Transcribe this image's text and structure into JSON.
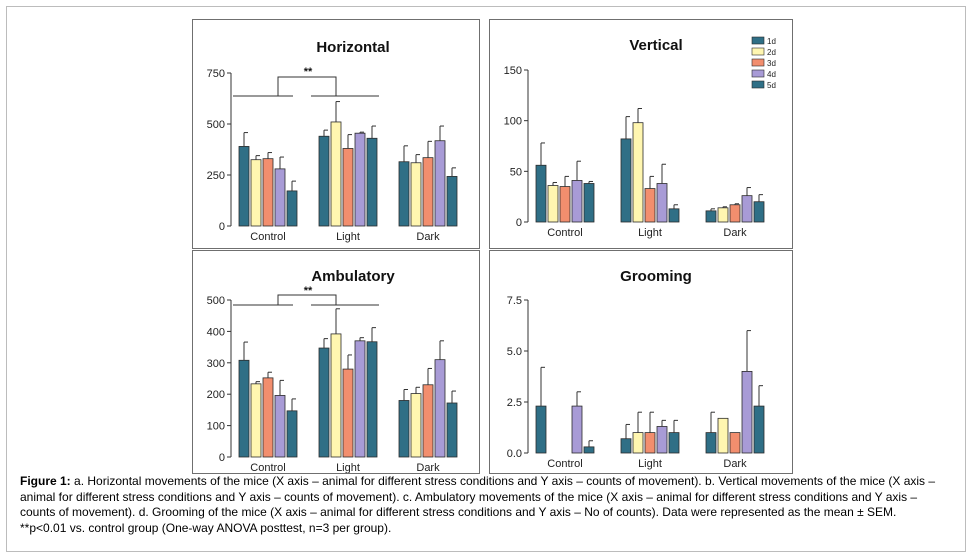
{
  "chart_data": [
    {
      "type": "bar",
      "panel_id": "a",
      "title": "Horizontal",
      "categories": [
        "Control",
        "Light",
        "Dark"
      ],
      "ylim": [
        0,
        750
      ],
      "yticks": [
        "0",
        "250",
        "500",
        "750"
      ],
      "ytick_values": [
        0,
        250,
        500,
        750
      ],
      "legend": false,
      "significance": "**",
      "series": [
        {
          "values": [
            390,
            440,
            315
          ],
          "errors": [
            68,
            30,
            78
          ]
        },
        {
          "values": [
            325,
            510,
            310
          ],
          "errors": [
            20,
            100,
            40
          ]
        },
        {
          "values": [
            330,
            380,
            335
          ],
          "errors": [
            30,
            68,
            80
          ]
        },
        {
          "values": [
            280,
            455,
            418
          ],
          "errors": [
            58,
            5,
            72
          ]
        },
        {
          "values": [
            172,
            430,
            243
          ],
          "errors": [
            48,
            60,
            42
          ]
        }
      ]
    },
    {
      "type": "bar",
      "panel_id": "b",
      "title": "Vertical",
      "categories": [
        "Control",
        "Light",
        "Dark"
      ],
      "ylim": [
        0,
        150
      ],
      "yticks": [
        "0",
        "50",
        "100",
        "150"
      ],
      "ytick_values": [
        0,
        50,
        100,
        150
      ],
      "legend": true,
      "legend_position": "top-right",
      "series": [
        {
          "name": "1d",
          "values": [
            56,
            82,
            11
          ],
          "errors": [
            22,
            22,
            2
          ]
        },
        {
          "name": "2d",
          "values": [
            36,
            98,
            14
          ],
          "errors": [
            3,
            14,
            1
          ]
        },
        {
          "name": "3d",
          "values": [
            35,
            33,
            17
          ],
          "errors": [
            10,
            12,
            1
          ]
        },
        {
          "name": "4d",
          "values": [
            41,
            38,
            26
          ],
          "errors": [
            19,
            19,
            8
          ]
        },
        {
          "name": "5d",
          "values": [
            38,
            13,
            20
          ],
          "errors": [
            2,
            4,
            7
          ]
        }
      ]
    },
    {
      "type": "bar",
      "panel_id": "c",
      "title": "Ambulatory",
      "categories": [
        "Control",
        "Light",
        "Dark"
      ],
      "ylim": [
        0,
        500
      ],
      "yticks": [
        "0",
        "100",
        "200",
        "300",
        "400",
        "500"
      ],
      "ytick_values": [
        0,
        100,
        200,
        300,
        400,
        500
      ],
      "legend": false,
      "significance": "**",
      "series": [
        {
          "values": [
            308,
            347,
            180
          ],
          "errors": [
            58,
            30,
            35
          ]
        },
        {
          "values": [
            233,
            392,
            202
          ],
          "errors": [
            7,
            80,
            20
          ]
        },
        {
          "values": [
            252,
            280,
            230
          ],
          "errors": [
            18,
            45,
            52
          ]
        },
        {
          "values": [
            196,
            370,
            310
          ],
          "errors": [
            48,
            10,
            60
          ]
        },
        {
          "values": [
            147,
            367,
            172
          ],
          "errors": [
            38,
            45,
            38
          ]
        }
      ]
    },
    {
      "type": "bar",
      "panel_id": "d",
      "title": "Grooming",
      "categories": [
        "Control",
        "Light",
        "Dark"
      ],
      "ylim": [
        0,
        7.5
      ],
      "yticks": [
        "0.0",
        "2.5",
        "5.0",
        "7.5"
      ],
      "ytick_values": [
        0,
        2.5,
        5.0,
        7.5
      ],
      "legend": false,
      "series": [
        {
          "values": [
            2.3,
            0.7,
            1.0
          ],
          "errors": [
            1.9,
            0.7,
            1.0
          ]
        },
        {
          "values": [
            0,
            1.0,
            1.7
          ],
          "errors": [
            0,
            1.0,
            0
          ]
        },
        {
          "values": [
            0,
            1.0,
            1.0
          ],
          "errors": [
            0,
            1.0,
            0
          ]
        },
        {
          "values": [
            2.3,
            1.3,
            4.0
          ],
          "errors": [
            0.7,
            0.3,
            2.0
          ]
        },
        {
          "values": [
            0.3,
            1.0,
            2.3
          ],
          "errors": [
            0.3,
            0.6,
            1.0
          ]
        }
      ]
    }
  ],
  "colors": {
    "series": [
      "#2f6f86",
      "#fff6b0",
      "#f28e6e",
      "#a89bd6",
      "#2f6f86"
    ],
    "axis": "#333333",
    "panel_border": "#6f6f6f"
  },
  "caption": {
    "label": "Figure 1:",
    "text": "a. Horizontal movements of the mice (X axis – animal for different stress conditions and Y axis – counts of movement). b. Vertical movements of the mice (X axis – animal for different stress conditions and Y axis – counts of movement). c. Ambulatory movements of the mice (X axis – animal for different stress conditions and Y axis – counts of movement). d. Grooming of the mice (X axis – animal for different stress conditions and Y axis – No of counts). Data were represented as the mean ± SEM. **p<0.01 vs. control group (One-way ANOVA posttest, n=3 per group)."
  }
}
